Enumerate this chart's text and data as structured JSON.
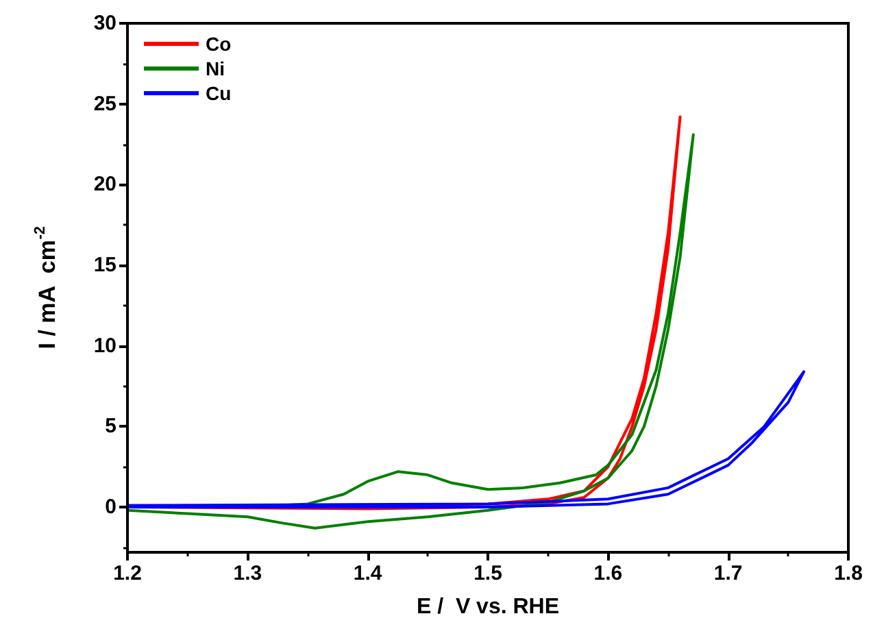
{
  "chart_data": {
    "type": "line",
    "xlabel": "E /  V vs. RHE",
    "ylabel": "I / mA  cm$^{-2}$",
    "xlim": [
      1.2,
      1.8
    ],
    "xticks": [
      1.2,
      1.3,
      1.4,
      1.5,
      1.6,
      1.7,
      1.8
    ],
    "ylim": [
      -2.8,
      30
    ],
    "yticks": [
      0,
      5,
      10,
      15,
      20,
      25,
      30
    ],
    "grid": false,
    "legend": "top left",
    "marker": "none",
    "line_style": "solid",
    "series": [
      {
        "name": "Co",
        "color": "#ff0000",
        "x": [
          1.2,
          1.4,
          1.5,
          1.55,
          1.58,
          1.6,
          1.62,
          1.63,
          1.64,
          1.65,
          1.66,
          1.65,
          1.64,
          1.63,
          1.62,
          1.61,
          1.6,
          1.58,
          1.55,
          1.5,
          1.4,
          1.2
        ],
        "values": [
          0.1,
          0.1,
          0.2,
          0.5,
          1,
          2.5,
          5.5,
          8,
          12,
          17,
          24.2,
          16,
          11,
          7.5,
          5,
          3,
          1.8,
          0.6,
          0.2,
          0,
          -0.1,
          0
        ]
      },
      {
        "name": "Ni",
        "color": "#008000",
        "x": [
          1.2,
          1.3,
          1.35,
          1.38,
          1.4,
          1.425,
          1.45,
          1.47,
          1.5,
          1.53,
          1.56,
          1.59,
          1.6,
          1.62,
          1.64,
          1.65,
          1.66,
          1.671,
          1.66,
          1.65,
          1.64,
          1.63,
          1.62,
          1.6,
          1.58,
          1.55,
          1.5,
          1.45,
          1.4,
          1.356,
          1.33,
          1.3,
          1.25,
          1.2
        ],
        "values": [
          0,
          0,
          0.2,
          0.8,
          1.6,
          2.2,
          2,
          1.5,
          1.1,
          1.2,
          1.5,
          2,
          2.6,
          4.5,
          8.5,
          12,
          17,
          23.1,
          15.5,
          11,
          7.5,
          5,
          3.5,
          1.8,
          1,
          0.3,
          -0.2,
          -0.6,
          -0.9,
          -1.3,
          -1,
          -0.6,
          -0.4,
          -0.2
        ]
      },
      {
        "name": "Cu",
        "color": "#0000ff",
        "x": [
          1.2,
          1.5,
          1.6,
          1.65,
          1.7,
          1.73,
          1.763,
          1.75,
          1.72,
          1.7,
          1.65,
          1.6,
          1.5,
          1.2
        ],
        "values": [
          0.1,
          0.2,
          0.5,
          1.2,
          3,
          5,
          8.4,
          6.5,
          4,
          2.6,
          0.8,
          0.2,
          0,
          0
        ]
      }
    ]
  }
}
